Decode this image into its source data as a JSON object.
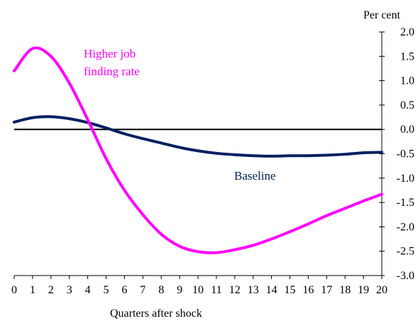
{
  "chart_data": {
    "type": "line",
    "ylabel": "Per cent",
    "xlabel": "Quarters after shock",
    "x": [
      0,
      1,
      2,
      3,
      4,
      5,
      6,
      7,
      8,
      9,
      10,
      11,
      12,
      13,
      14,
      15,
      16,
      17,
      18,
      19,
      20
    ],
    "xticks": [
      "0",
      "1",
      "2",
      "3",
      "4",
      "5",
      "6",
      "7",
      "8",
      "9",
      "10",
      "11",
      "12",
      "13",
      "14",
      "15",
      "16",
      "17",
      "18",
      "19",
      "20"
    ],
    "ylim": [
      -3.0,
      2.0
    ],
    "yticks": [
      "2.0",
      "1.5",
      "1.0",
      "0.5",
      "0.0",
      "-0.5",
      "-1.0",
      "-1.5",
      "-2.0",
      "-2.5",
      "-3.0"
    ],
    "ytick_values": [
      2.0,
      1.5,
      1.0,
      0.5,
      0.0,
      -0.5,
      -1.0,
      -1.5,
      -2.0,
      -2.5,
      -3.0
    ],
    "y_axis_position": "right",
    "series": [
      {
        "name": "Baseline",
        "color": "#002060",
        "values": [
          0.15,
          0.24,
          0.26,
          0.22,
          0.14,
          0.03,
          -0.09,
          -0.19,
          -0.28,
          -0.37,
          -0.44,
          -0.49,
          -0.52,
          -0.54,
          -0.55,
          -0.54,
          -0.54,
          -0.53,
          -0.51,
          -0.48,
          -0.47
        ]
      },
      {
        "name": "Higher job finding rate",
        "color": "#FF00FF",
        "values": [
          1.2,
          1.66,
          1.5,
          0.95,
          0.2,
          -0.6,
          -1.25,
          -1.75,
          -2.15,
          -2.4,
          -2.51,
          -2.53,
          -2.47,
          -2.38,
          -2.25,
          -2.1,
          -1.94,
          -1.77,
          -1.62,
          -1.47,
          -1.33
        ]
      }
    ],
    "annotations": [
      {
        "text": "Higher job",
        "series": 1
      },
      {
        "text": "finding rate",
        "series": 1
      },
      {
        "text": "Baseline",
        "series": 0
      }
    ],
    "grid": false,
    "legend": "none"
  }
}
